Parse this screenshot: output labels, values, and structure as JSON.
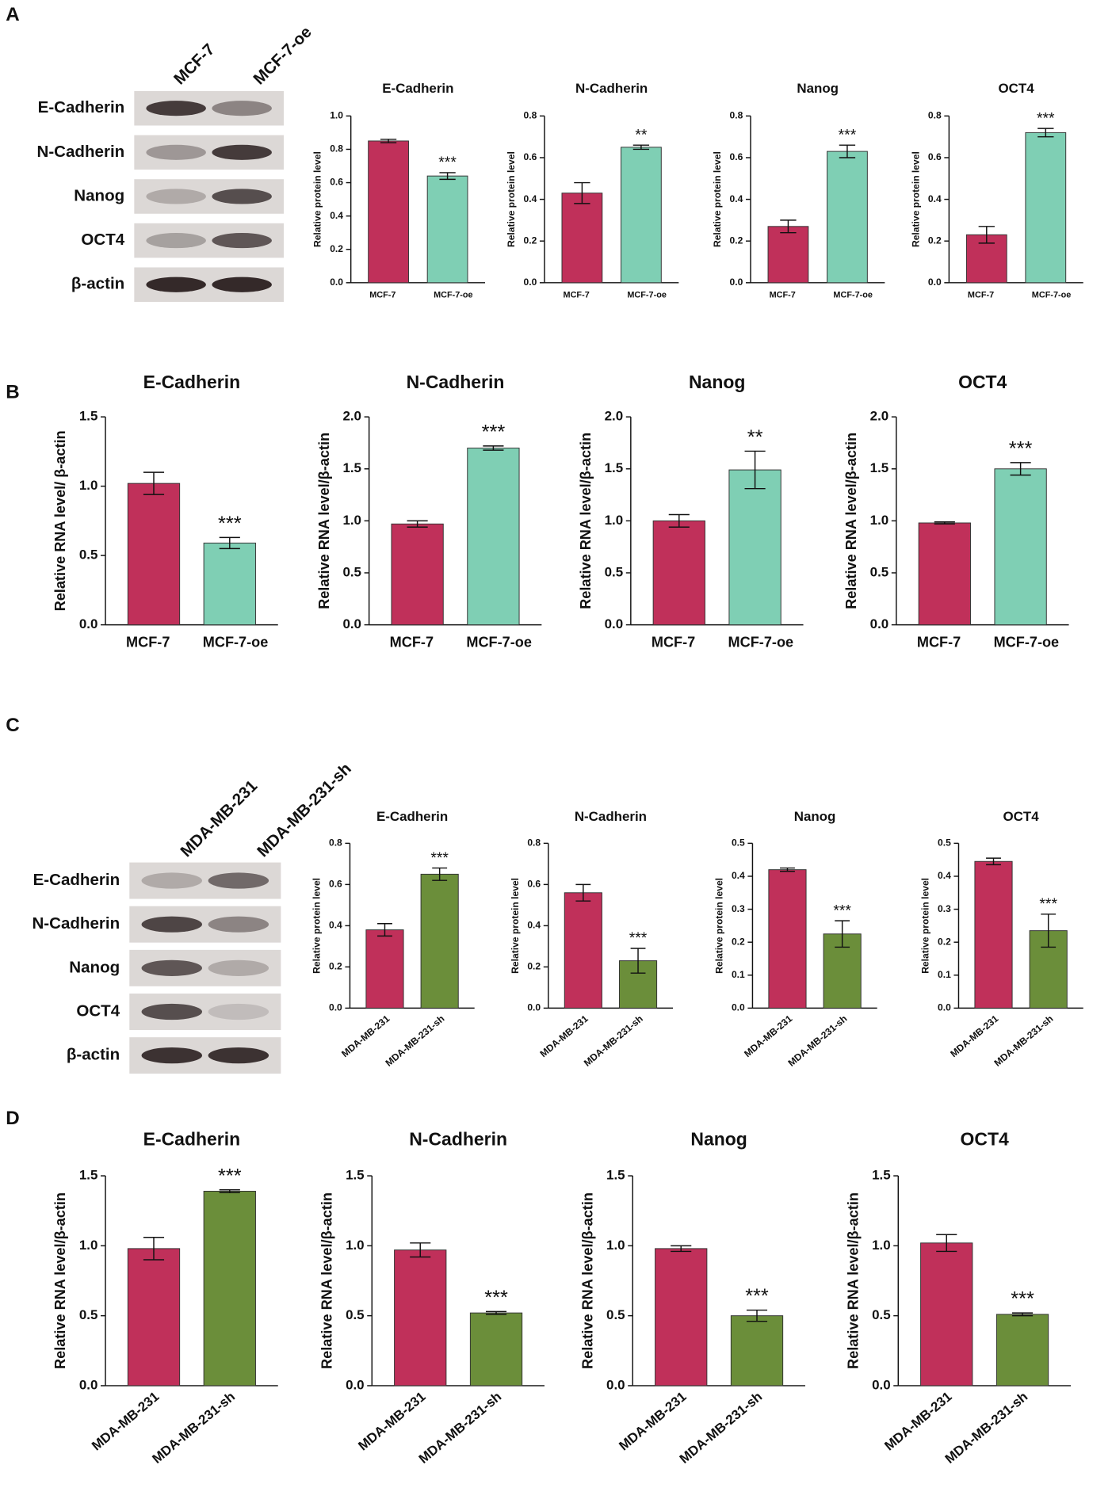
{
  "panels": [
    "A",
    "B",
    "C",
    "D"
  ],
  "blots": [
    {
      "lanes": [
        "MCF-7",
        "MCF-7-oe"
      ],
      "rows": [
        "E-Cadherin",
        "N-Cadherin",
        "Nanog",
        "OCT4",
        "β-actin"
      ]
    },
    {
      "lanes": [
        "MDA-MB-231",
        "MDA-MB-231-sh"
      ],
      "rows": [
        "E-Cadherin",
        "N-Cadherin",
        "Nanog",
        "OCT4",
        "β-actin"
      ]
    }
  ],
  "chart_data": [
    {
      "type": "bar",
      "title": "E-Cadherin",
      "ylabel": "Relative protein level",
      "categories": [
        "MCF-7",
        "MCF-7-oe"
      ],
      "values": [
        0.85,
        0.64
      ],
      "errors": [
        0.01,
        0.02
      ],
      "colors": [
        "#c0305a",
        "#7fcfb4"
      ],
      "annotation": "***",
      "ylim": [
        0,
        1.0
      ],
      "yticks": [
        {
          "value": 0,
          "label": "0.0"
        },
        0.2,
        0.4,
        0.6,
        0.8,
        {
          "value": 1,
          "label": "1.0"
        }
      ]
    },
    {
      "type": "bar",
      "title": "N-Cadherin",
      "ylabel": "Relative protein level",
      "categories": [
        "MCF-7",
        "MCF-7-oe"
      ],
      "values": [
        0.43,
        0.65
      ],
      "errors": [
        0.05,
        0.01
      ],
      "colors": [
        "#c0305a",
        "#7fcfb4"
      ],
      "annotation": "**",
      "ylim": [
        0,
        0.8
      ],
      "yticks": [
        {
          "value": 0,
          "label": "0.0"
        },
        0.2,
        0.4,
        0.6,
        0.8
      ]
    },
    {
      "type": "bar",
      "title": "Nanog",
      "ylabel": "Relative protein level",
      "categories": [
        "MCF-7",
        "MCF-7-oe"
      ],
      "values": [
        0.27,
        0.63
      ],
      "errors": [
        0.03,
        0.03
      ],
      "colors": [
        "#c0305a",
        "#7fcfb4"
      ],
      "annotation": "***",
      "ylim": [
        0,
        0.8
      ],
      "yticks": [
        {
          "value": 0,
          "label": "0.0"
        },
        0.2,
        0.4,
        0.6,
        0.8
      ]
    },
    {
      "type": "bar",
      "title": "OCT4",
      "ylabel": "Relative protein level",
      "categories": [
        "MCF-7",
        "MCF-7-oe"
      ],
      "values": [
        0.23,
        0.72
      ],
      "errors": [
        0.04,
        0.02
      ],
      "colors": [
        "#c0305a",
        "#7fcfb4"
      ],
      "annotation": "***",
      "ylim": [
        0,
        0.8
      ],
      "yticks": [
        {
          "value": 0,
          "label": "0.0"
        },
        0.2,
        0.4,
        0.6,
        0.8
      ]
    },
    {
      "type": "bar",
      "title": "E-Cadherin",
      "ylabel": "Relative RNA level/ β-actin",
      "categories": [
        "MCF-7",
        "MCF-7-oe"
      ],
      "values": [
        1.02,
        0.59
      ],
      "errors": [
        0.08,
        0.04
      ],
      "colors": [
        "#c0305a",
        "#7fcfb4"
      ],
      "annotation": "***",
      "ylim": [
        0,
        1.5
      ],
      "yticks": [
        {
          "value": 0,
          "label": "0.0"
        },
        0.5,
        {
          "value": 1,
          "label": "1.0"
        },
        1.5
      ]
    },
    {
      "type": "bar",
      "title": "N-Cadherin",
      "ylabel": "Relative RNA level/β-actin",
      "categories": [
        "MCF-7",
        "MCF-7-oe"
      ],
      "values": [
        0.97,
        1.7
      ],
      "errors": [
        0.03,
        0.02
      ],
      "colors": [
        "#c0305a",
        "#7fcfb4"
      ],
      "annotation": "***",
      "ylim": [
        0,
        2.0
      ],
      "yticks": [
        {
          "value": 0,
          "label": "0.0"
        },
        0.5,
        {
          "value": 1,
          "label": "1.0"
        },
        1.5,
        {
          "value": 2,
          "label": "2.0"
        }
      ]
    },
    {
      "type": "bar",
      "title": "Nanog",
      "ylabel": "Relative RNA level/β-actin",
      "categories": [
        "MCF-7",
        "MCF-7-oe"
      ],
      "values": [
        1.0,
        1.49
      ],
      "errors": [
        0.06,
        0.18
      ],
      "colors": [
        "#c0305a",
        "#7fcfb4"
      ],
      "annotation": "**",
      "ylim": [
        0,
        2.0
      ],
      "yticks": [
        {
          "value": 0,
          "label": "0.0"
        },
        0.5,
        {
          "value": 1,
          "label": "1.0"
        },
        1.5,
        {
          "value": 2,
          "label": "2.0"
        }
      ]
    },
    {
      "type": "bar",
      "title": "OCT4",
      "ylabel": "Relative RNA level/β-actin",
      "categories": [
        "MCF-7",
        "MCF-7-oe"
      ],
      "values": [
        0.98,
        1.5
      ],
      "errors": [
        0.01,
        0.06
      ],
      "colors": [
        "#c0305a",
        "#7fcfb4"
      ],
      "annotation": "***",
      "ylim": [
        0,
        2.0
      ],
      "yticks": [
        {
          "value": 0,
          "label": "0.0"
        },
        0.5,
        {
          "value": 1,
          "label": "1.0"
        },
        1.5,
        {
          "value": 2,
          "label": "2.0"
        }
      ]
    },
    {
      "type": "bar",
      "title": "E-Cadherin",
      "ylabel": "Relative protein level",
      "categories": [
        "MDA-MB-231",
        "MDA-MB-231-sh"
      ],
      "values": [
        0.38,
        0.65
      ],
      "errors": [
        0.03,
        0.03
      ],
      "colors": [
        "#c0305a",
        "#6b8e3a"
      ],
      "annotation": "***",
      "ylim": [
        0,
        0.8
      ],
      "yticks": [
        {
          "value": 0,
          "label": "0.0"
        },
        0.2,
        0.4,
        0.6,
        0.8
      ]
    },
    {
      "type": "bar",
      "title": "N-Cadherin",
      "ylabel": "Relative protein level",
      "categories": [
        "MDA-MB-231",
        "MDA-MB-231-sh"
      ],
      "values": [
        0.56,
        0.23
      ],
      "errors": [
        0.04,
        0.06
      ],
      "colors": [
        "#c0305a",
        "#6b8e3a"
      ],
      "annotation": "***",
      "ylim": [
        0,
        0.8
      ],
      "yticks": [
        {
          "value": 0,
          "label": "0.0"
        },
        0.2,
        0.4,
        0.6,
        0.8
      ]
    },
    {
      "type": "bar",
      "title": "Nanog",
      "ylabel": "Relative protein level",
      "categories": [
        "MDA-MB-231",
        "MDA-MB-231-sh"
      ],
      "values": [
        0.42,
        0.225
      ],
      "errors": [
        0.005,
        0.04
      ],
      "colors": [
        "#c0305a",
        "#6b8e3a"
      ],
      "annotation": "***",
      "ylim": [
        0,
        0.5
      ],
      "yticks": [
        {
          "value": 0,
          "label": "0.0"
        },
        0.1,
        0.2,
        0.3,
        0.4,
        0.5
      ]
    },
    {
      "type": "bar",
      "title": "OCT4",
      "ylabel": "Relative protein level",
      "categories": [
        "MDA-MB-231",
        "MDA-MB-231-sh"
      ],
      "values": [
        0.445,
        0.235
      ],
      "errors": [
        0.01,
        0.05
      ],
      "colors": [
        "#c0305a",
        "#6b8e3a"
      ],
      "annotation": "***",
      "ylim": [
        0,
        0.5
      ],
      "yticks": [
        {
          "value": 0,
          "label": "0.0"
        },
        0.1,
        0.2,
        0.3,
        0.4,
        0.5
      ]
    },
    {
      "type": "bar",
      "title": "E-Cadherin",
      "ylabel": "Relative RNA level/β-actin",
      "categories": [
        "MDA-MB-231",
        "MDA-MB-231-sh"
      ],
      "values": [
        0.98,
        1.39
      ],
      "errors": [
        0.08,
        0.01
      ],
      "colors": [
        "#c0305a",
        "#6b8e3a"
      ],
      "annotation": "***",
      "ylim": [
        0,
        1.5
      ],
      "yticks": [
        {
          "value": 0,
          "label": "0.0"
        },
        0.5,
        {
          "value": 1,
          "label": "1.0"
        },
        1.5
      ]
    },
    {
      "type": "bar",
      "title": "N-Cadherin",
      "ylabel": "Relative RNA level/β-actin",
      "categories": [
        "MDA-MB-231",
        "MDA-MB-231-sh"
      ],
      "values": [
        0.97,
        0.52
      ],
      "errors": [
        0.05,
        0.01
      ],
      "colors": [
        "#c0305a",
        "#6b8e3a"
      ],
      "annotation": "***",
      "ylim": [
        0,
        1.5
      ],
      "yticks": [
        {
          "value": 0,
          "label": "0.0"
        },
        0.5,
        {
          "value": 1,
          "label": "1.0"
        },
        1.5
      ]
    },
    {
      "type": "bar",
      "title": "Nanog",
      "ylabel": "Relative RNA level/β-actin",
      "categories": [
        "MDA-MB-231",
        "MDA-MB-231-sh"
      ],
      "values": [
        0.98,
        0.5
      ],
      "errors": [
        0.02,
        0.04
      ],
      "colors": [
        "#c0305a",
        "#6b8e3a"
      ],
      "annotation": "***",
      "ylim": [
        0,
        1.5
      ],
      "yticks": [
        {
          "value": 0,
          "label": "0.0"
        },
        0.5,
        {
          "value": 1,
          "label": "1.0"
        },
        1.5
      ]
    },
    {
      "type": "bar",
      "title": "OCT4",
      "ylabel": "Relative RNA level/β-actin",
      "categories": [
        "MDA-MB-231",
        "MDA-MB-231-sh"
      ],
      "values": [
        1.02,
        0.51
      ],
      "errors": [
        0.06,
        0.01
      ],
      "colors": [
        "#c0305a",
        "#6b8e3a"
      ],
      "annotation": "***",
      "ylim": [
        0,
        1.5
      ],
      "yticks": [
        {
          "value": 0,
          "label": "0.0"
        },
        0.5,
        {
          "value": 1,
          "label": "1.0"
        },
        1.5
      ]
    }
  ]
}
